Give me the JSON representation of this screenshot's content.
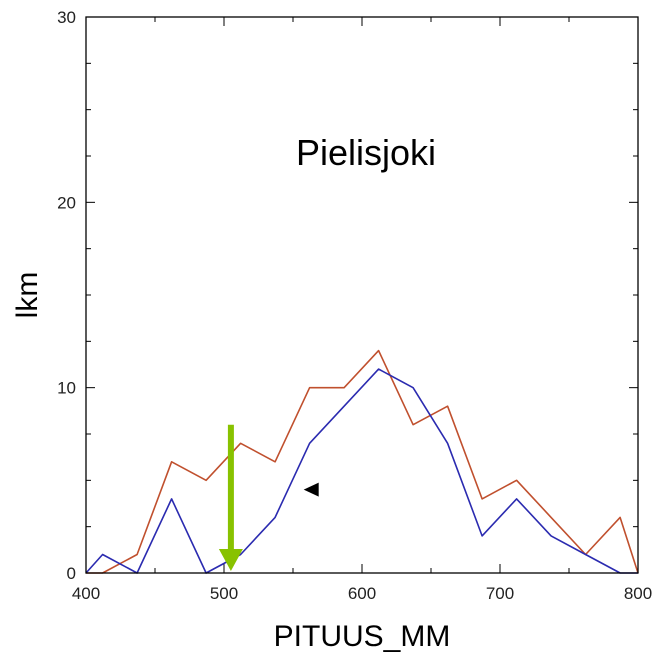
{
  "chart_data": {
    "type": "line",
    "title": "Pielisjoki",
    "xlabel": "PITUUS_MM",
    "ylabel": "lkm",
    "xlim": [
      400,
      800
    ],
    "ylim": [
      0,
      30
    ],
    "x_ticks": [
      400,
      500,
      600,
      700,
      800
    ],
    "y_ticks": [
      0,
      10,
      20,
      30
    ],
    "grid": false,
    "legend": "none",
    "series": [
      {
        "color": "#c0502e",
        "x": [
          400,
          412,
          437,
          462,
          487,
          512,
          537,
          562,
          587,
          612,
          637,
          662,
          687,
          712,
          737,
          762,
          787,
          800
        ],
        "y": [
          0,
          0,
          1,
          6,
          5,
          7,
          6,
          10,
          10,
          12,
          8,
          9,
          4,
          5,
          3,
          1,
          3,
          0
        ]
      },
      {
        "color": "#2b2bb0",
        "x": [
          400,
          412,
          437,
          462,
          487,
          512,
          537,
          562,
          587,
          612,
          637,
          662,
          687,
          712,
          737,
          762,
          787,
          800
        ],
        "y": [
          0,
          1,
          0,
          4,
          0,
          1,
          3,
          7,
          9,
          11,
          10,
          7,
          2,
          4,
          2,
          1,
          0,
          0
        ]
      }
    ],
    "annotations": [
      {
        "kind": "arrow-down",
        "color": "#88c200",
        "x": 505,
        "y_from": 8,
        "y_to": 0
      },
      {
        "kind": "pointer-triangle",
        "color": "#000000",
        "x": 565,
        "y": 4.5
      }
    ]
  }
}
